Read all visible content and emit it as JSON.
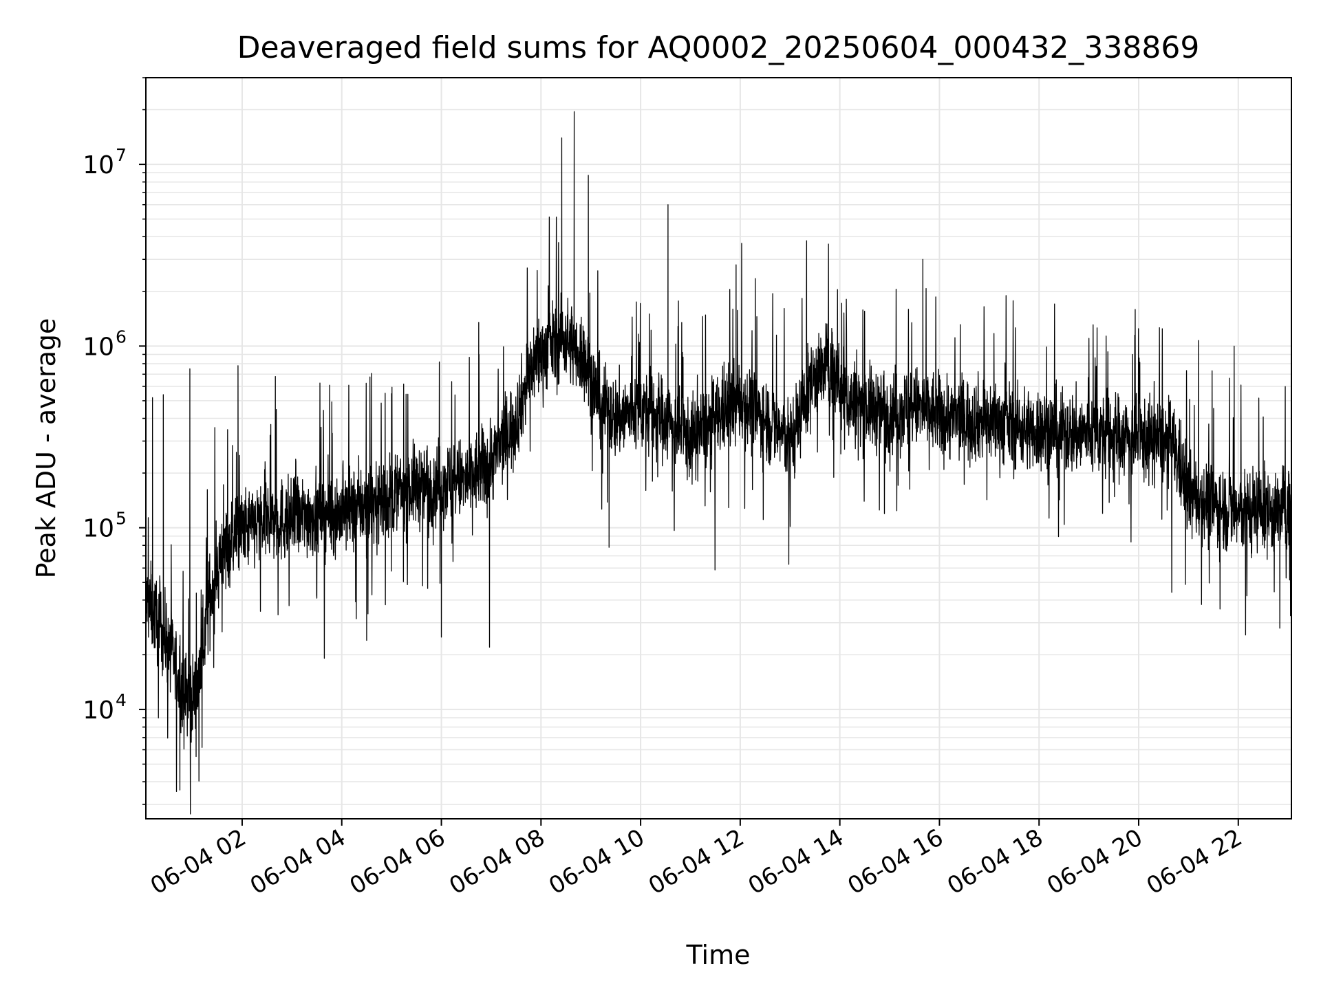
{
  "chart_data": {
    "type": "line",
    "title": "Deaveraged field sums for AQ0002_20250604_000432_338869",
    "xlabel": "Time",
    "ylabel": "Peak ADU - average",
    "xlim": [
      "2025-06-04 00:04",
      "2025-06-04 23:04"
    ],
    "ylim": [
      2500,
      30000000
    ],
    "yscale": "log",
    "grid": true,
    "legend": "none",
    "x_ticks": [
      {
        "value": "2025-06-04 02:00",
        "label": "06-04 02"
      },
      {
        "value": "2025-06-04 04:00",
        "label": "06-04 04"
      },
      {
        "value": "2025-06-04 06:00",
        "label": "06-04 06"
      },
      {
        "value": "2025-06-04 08:00",
        "label": "06-04 08"
      },
      {
        "value": "2025-06-04 10:00",
        "label": "06-04 10"
      },
      {
        "value": "2025-06-04 12:00",
        "label": "06-04 12"
      },
      {
        "value": "2025-06-04 14:00",
        "label": "06-04 14"
      },
      {
        "value": "2025-06-04 16:00",
        "label": "06-04 16"
      },
      {
        "value": "2025-06-04 18:00",
        "label": "06-04 18"
      },
      {
        "value": "2025-06-04 20:00",
        "label": "06-04 20"
      },
      {
        "value": "2025-06-04 22:00",
        "label": "06-04 22"
      }
    ],
    "y_ticks": [
      {
        "value": 10000,
        "label": "10",
        "exp": "4"
      },
      {
        "value": 100000,
        "label": "10",
        "exp": "5"
      },
      {
        "value": 1000000,
        "label": "10",
        "exp": "6"
      },
      {
        "value": 10000000,
        "label": "10",
        "exp": "7"
      }
    ],
    "series": [
      {
        "color": "#000000",
        "x": [
          "2025-06-04 00:04",
          "2025-06-04 00:20",
          "2025-06-04 00:35",
          "2025-06-04 00:50",
          "2025-06-04 01:05",
          "2025-06-04 01:20",
          "2025-06-04 01:35",
          "2025-06-04 01:50",
          "2025-06-04 02:10",
          "2025-06-04 02:30",
          "2025-06-04 03:00",
          "2025-06-04 03:30",
          "2025-06-04 04:00",
          "2025-06-04 04:30",
          "2025-06-04 05:00",
          "2025-06-04 05:30",
          "2025-06-04 06:00",
          "2025-06-04 06:30",
          "2025-06-04 07:00",
          "2025-06-04 07:30",
          "2025-06-04 07:50",
          "2025-06-04 08:10",
          "2025-06-04 08:30",
          "2025-06-04 08:50",
          "2025-06-04 09:10",
          "2025-06-04 09:30",
          "2025-06-04 10:00",
          "2025-06-04 10:30",
          "2025-06-04 11:00",
          "2025-06-04 11:30",
          "2025-06-04 12:00",
          "2025-06-04 12:30",
          "2025-06-04 13:00",
          "2025-06-04 13:30",
          "2025-06-04 13:50",
          "2025-06-04 14:10",
          "2025-06-04 14:40",
          "2025-06-04 15:10",
          "2025-06-04 15:40",
          "2025-06-04 16:10",
          "2025-06-04 16:40",
          "2025-06-04 17:10",
          "2025-06-04 17:40",
          "2025-06-04 18:10",
          "2025-06-04 18:40",
          "2025-06-04 19:10",
          "2025-06-04 19:40",
          "2025-06-04 20:10",
          "2025-06-04 20:40",
          "2025-06-04 21:00",
          "2025-06-04 21:20",
          "2025-06-04 21:40",
          "2025-06-04 22:00",
          "2025-06-04 22:20",
          "2025-06-04 22:40",
          "2025-06-04 23:00"
        ],
        "y": [
          40000,
          30000,
          20000,
          12000,
          12000,
          40000,
          70000,
          90000,
          100000,
          110000,
          110000,
          120000,
          120000,
          130000,
          150000,
          170000,
          180000,
          180000,
          230000,
          400000,
          800000,
          1000000,
          1100000,
          900000,
          500000,
          400000,
          450000,
          400000,
          300000,
          400000,
          500000,
          400000,
          300000,
          700000,
          800000,
          500000,
          450000,
          450000,
          450000,
          400000,
          400000,
          380000,
          350000,
          350000,
          330000,
          330000,
          320000,
          300000,
          300000,
          150000,
          140000,
          130000,
          120000,
          130000,
          120000,
          130000
        ],
        "spikes_high": [
          {
            "x": "2025-06-04 00:12",
            "y": 520000
          },
          {
            "x": "2025-06-04 00:25",
            "y": 540000
          },
          {
            "x": "2025-06-04 00:57",
            "y": 750000
          },
          {
            "x": "2025-06-04 01:55",
            "y": 780000
          },
          {
            "x": "2025-06-04 02:40",
            "y": 680000
          },
          {
            "x": "2025-06-04 06:45",
            "y": 1350000
          },
          {
            "x": "2025-06-04 08:25",
            "y": 14000000
          },
          {
            "x": "2025-06-04 08:40",
            "y": 19500000
          },
          {
            "x": "2025-06-04 08:57",
            "y": 8700000
          },
          {
            "x": "2025-06-04 10:33",
            "y": 6000000
          },
          {
            "x": "2025-06-04 11:55",
            "y": 2800000
          },
          {
            "x": "2025-06-04 13:20",
            "y": 3800000
          },
          {
            "x": "2025-06-04 15:40",
            "y": 3000000
          },
          {
            "x": "2025-06-04 20:25",
            "y": 1000000
          },
          {
            "x": "2025-06-04 21:55",
            "y": 1000000
          }
        ],
        "spikes_low": [
          {
            "x": "2025-06-04 00:45",
            "y": 3600
          },
          {
            "x": "2025-06-04 04:30",
            "y": 24000
          },
          {
            "x": "2025-06-04 06:00",
            "y": 25000
          },
          {
            "x": "2025-06-04 06:58",
            "y": 22000
          },
          {
            "x": "2025-06-04 09:22",
            "y": 78000
          },
          {
            "x": "2025-06-04 22:50",
            "y": 28000
          }
        ]
      }
    ]
  }
}
